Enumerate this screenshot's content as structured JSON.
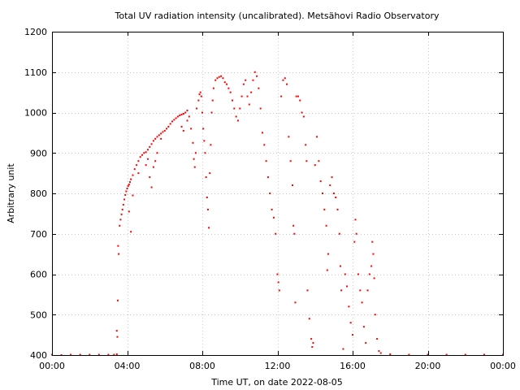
{
  "chart_data": {
    "type": "scatter",
    "title": "Total UV radiation intensity (uncalibrated). Metsähovi Radio Observatory",
    "xlabel": "Time UT, on date 2022-08-05",
    "ylabel": "Arbitrary unit",
    "x_unit": "hours UT",
    "xlim": [
      0,
      24
    ],
    "ylim": [
      400,
      1200
    ],
    "x_ticks": [
      {
        "value": 0,
        "label": "00:00"
      },
      {
        "value": 4,
        "label": "04:00"
      },
      {
        "value": 8,
        "label": "08:00"
      },
      {
        "value": 12,
        "label": "12:00"
      },
      {
        "value": 16,
        "label": "16:00"
      },
      {
        "value": 20,
        "label": "20:00"
      },
      {
        "value": 24,
        "label": "00:00"
      }
    ],
    "y_ticks": [
      400,
      500,
      600,
      700,
      800,
      900,
      1000,
      1100,
      1200
    ],
    "grid": true,
    "marker_color": "#ff0000",
    "series": [
      {
        "points": [
          [
            0.0,
            401
          ],
          [
            0.5,
            400
          ],
          [
            1.0,
            401
          ],
          [
            1.5,
            401
          ],
          [
            2.0,
            401
          ],
          [
            2.5,
            401
          ],
          [
            3.0,
            401
          ],
          [
            3.3,
            401
          ],
          [
            3.45,
            402
          ],
          [
            3.45,
            460
          ],
          [
            3.48,
            445
          ],
          [
            3.5,
            535
          ],
          [
            3.52,
            670
          ],
          [
            3.55,
            650
          ],
          [
            3.6,
            720
          ],
          [
            3.65,
            735
          ],
          [
            3.7,
            748
          ],
          [
            3.75,
            760
          ],
          [
            3.8,
            772
          ],
          [
            3.85,
            785
          ],
          [
            3.9,
            796
          ],
          [
            3.95,
            805
          ],
          [
            4.0,
            812
          ],
          [
            4.05,
            818
          ],
          [
            4.1,
            822
          ],
          [
            4.15,
            828
          ],
          [
            4.2,
            835
          ],
          [
            4.3,
            845
          ],
          [
            4.4,
            860
          ],
          [
            4.5,
            870
          ],
          [
            4.6,
            880
          ],
          [
            4.7,
            890
          ],
          [
            4.8,
            895
          ],
          [
            4.9,
            900
          ],
          [
            5.0,
            902
          ],
          [
            5.1,
            908
          ],
          [
            5.2,
            915
          ],
          [
            5.3,
            922
          ],
          [
            5.4,
            930
          ],
          [
            5.5,
            935
          ],
          [
            5.6,
            940
          ],
          [
            5.7,
            944
          ],
          [
            5.8,
            948
          ],
          [
            5.9,
            952
          ],
          [
            6.0,
            955
          ],
          [
            6.1,
            960
          ],
          [
            6.2,
            965
          ],
          [
            6.3,
            972
          ],
          [
            6.4,
            978
          ],
          [
            6.5,
            982
          ],
          [
            6.6,
            986
          ],
          [
            6.7,
            990
          ],
          [
            6.8,
            993
          ],
          [
            6.9,
            995
          ],
          [
            7.0,
            997
          ],
          [
            7.1,
            1000
          ],
          [
            7.2,
            1005
          ],
          [
            4.1,
            755
          ],
          [
            4.2,
            705
          ],
          [
            4.3,
            795
          ],
          [
            4.6,
            850
          ],
          [
            5.0,
            870
          ],
          [
            5.1,
            885
          ],
          [
            5.2,
            840
          ],
          [
            5.3,
            815
          ],
          [
            5.4,
            865
          ],
          [
            5.5,
            880
          ],
          [
            5.6,
            900
          ],
          [
            5.8,
            935
          ],
          [
            6.9,
            965
          ],
          [
            7.0,
            955
          ],
          [
            7.2,
            980
          ],
          [
            7.3,
            990
          ],
          [
            7.4,
            960
          ],
          [
            7.5,
            925
          ],
          [
            7.55,
            885
          ],
          [
            7.6,
            865
          ],
          [
            7.65,
            900
          ],
          [
            7.7,
            1010
          ],
          [
            7.8,
            1030
          ],
          [
            7.85,
            1045
          ],
          [
            7.9,
            1050
          ],
          [
            7.95,
            1040
          ],
          [
            8.0,
            1000
          ],
          [
            8.05,
            960
          ],
          [
            8.1,
            930
          ],
          [
            8.15,
            900
          ],
          [
            8.2,
            840
          ],
          [
            8.25,
            790
          ],
          [
            8.3,
            760
          ],
          [
            8.35,
            715
          ],
          [
            8.4,
            850
          ],
          [
            8.45,
            920
          ],
          [
            8.5,
            1000
          ],
          [
            8.55,
            1030
          ],
          [
            8.6,
            1060
          ],
          [
            8.7,
            1080
          ],
          [
            8.8,
            1085
          ],
          [
            8.9,
            1088
          ],
          [
            9.0,
            1090
          ],
          [
            9.1,
            1085
          ],
          [
            9.2,
            1075
          ],
          [
            9.3,
            1070
          ],
          [
            9.4,
            1060
          ],
          [
            9.5,
            1050
          ],
          [
            9.6,
            1030
          ],
          [
            9.7,
            1010
          ],
          [
            9.8,
            990
          ],
          [
            9.9,
            980
          ],
          [
            10.0,
            1010
          ],
          [
            10.1,
            1040
          ],
          [
            10.2,
            1070
          ],
          [
            10.3,
            1080
          ],
          [
            10.4,
            1040
          ],
          [
            10.5,
            1020
          ],
          [
            10.6,
            1050
          ],
          [
            10.7,
            1080
          ],
          [
            10.8,
            1100
          ],
          [
            10.9,
            1090
          ],
          [
            11.0,
            1060
          ],
          [
            11.1,
            1010
          ],
          [
            11.2,
            950
          ],
          [
            11.3,
            920
          ],
          [
            11.4,
            880
          ],
          [
            11.5,
            840
          ],
          [
            11.6,
            800
          ],
          [
            11.7,
            760
          ],
          [
            11.8,
            740
          ],
          [
            11.9,
            700
          ],
          [
            12.0,
            600
          ],
          [
            12.05,
            580
          ],
          [
            12.1,
            560
          ],
          [
            12.2,
            1040
          ],
          [
            12.3,
            1080
          ],
          [
            12.4,
            1085
          ],
          [
            12.5,
            1070
          ],
          [
            12.6,
            940
          ],
          [
            12.7,
            880
          ],
          [
            12.8,
            820
          ],
          [
            12.85,
            720
          ],
          [
            12.9,
            700
          ],
          [
            12.95,
            530
          ],
          [
            13.0,
            1040
          ],
          [
            13.1,
            1040
          ],
          [
            13.2,
            1030
          ],
          [
            13.3,
            1000
          ],
          [
            13.4,
            990
          ],
          [
            13.5,
            920
          ],
          [
            13.55,
            880
          ],
          [
            13.6,
            560
          ],
          [
            13.7,
            490
          ],
          [
            13.8,
            440
          ],
          [
            13.85,
            420
          ],
          [
            13.9,
            430
          ],
          [
            14.0,
            870
          ],
          [
            14.1,
            940
          ],
          [
            14.2,
            880
          ],
          [
            14.3,
            830
          ],
          [
            14.4,
            800
          ],
          [
            14.5,
            760
          ],
          [
            14.6,
            720
          ],
          [
            14.65,
            610
          ],
          [
            14.7,
            650
          ],
          [
            14.8,
            820
          ],
          [
            14.9,
            840
          ],
          [
            15.0,
            800
          ],
          [
            15.1,
            790
          ],
          [
            15.2,
            760
          ],
          [
            15.3,
            700
          ],
          [
            15.35,
            620
          ],
          [
            15.4,
            560
          ],
          [
            15.5,
            415
          ],
          [
            15.6,
            600
          ],
          [
            15.7,
            570
          ],
          [
            15.8,
            520
          ],
          [
            15.9,
            480
          ],
          [
            16.0,
            450
          ],
          [
            16.1,
            680
          ],
          [
            16.15,
            735
          ],
          [
            16.2,
            700
          ],
          [
            16.3,
            600
          ],
          [
            16.4,
            560
          ],
          [
            16.5,
            530
          ],
          [
            16.6,
            470
          ],
          [
            16.7,
            430
          ],
          [
            16.8,
            560
          ],
          [
            16.9,
            600
          ],
          [
            17.0,
            620
          ],
          [
            17.05,
            680
          ],
          [
            17.1,
            650
          ],
          [
            17.15,
            590
          ],
          [
            17.2,
            500
          ],
          [
            17.3,
            440
          ],
          [
            17.4,
            410
          ],
          [
            17.5,
            405
          ],
          [
            18.0,
            402
          ],
          [
            19.0,
            401
          ],
          [
            20.0,
            401
          ],
          [
            21.0,
            401
          ],
          [
            22.0,
            401
          ],
          [
            23.0,
            401
          ],
          [
            24.0,
            401
          ]
        ]
      }
    ]
  }
}
